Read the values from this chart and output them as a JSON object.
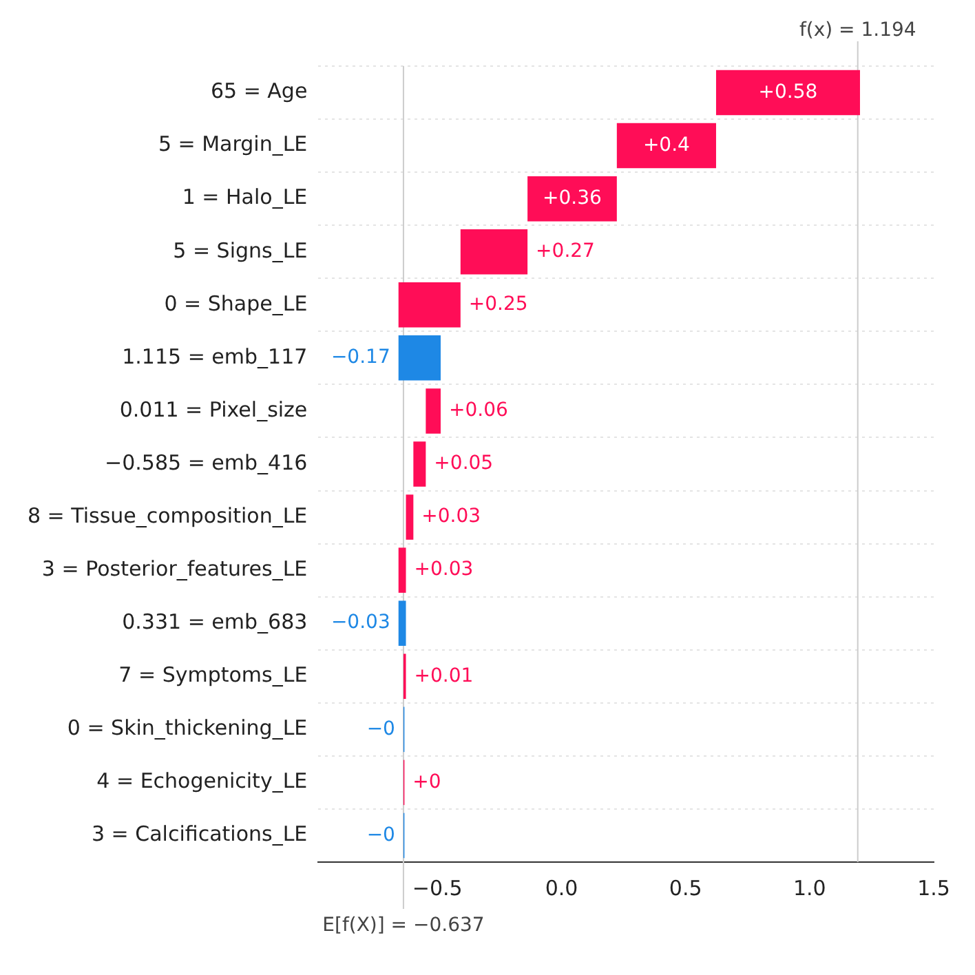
{
  "chart_data": {
    "type": "bar",
    "orientation": "horizontal",
    "categories": [
      "65 = Age",
      "5 = Margin_LE",
      "1 = Halo_LE",
      "5 = Signs_LE",
      "0 = Shape_LE",
      "1.115 = emb_117",
      "0.011 = Pixel_size",
      "−0.585 = emb_416",
      "8 = Tissue_composition_LE",
      "3 = Posterior_features_LE",
      "0.331 = emb_683",
      "7 = Symptoms_LE",
      "0 = Skin_thickening_LE",
      "4 = Echogenicity_LE",
      "3 = Calcifications_LE"
    ],
    "values": [
      0.58,
      0.4,
      0.36,
      0.27,
      0.25,
      -0.17,
      0.06,
      0.05,
      0.03,
      0.03,
      -0.03,
      0.01,
      -0.004,
      0.004,
      -0.004
    ],
    "base": [
      0.623,
      0.223,
      -0.137,
      -0.407,
      -0.657,
      -0.487,
      -0.547,
      -0.597,
      -0.627,
      -0.657,
      -0.627,
      -0.637,
      -0.633,
      -0.637,
      -0.633
    ],
    "colors": [
      "#ff0d57",
      "#ff0d57",
      "#ff0d57",
      "#ff0d57",
      "#ff0d57",
      "#1e88e5",
      "#ff0d57",
      "#ff0d57",
      "#ff0d57",
      "#ff0d57",
      "#1e88e5",
      "#ff0d57",
      "#1e88e5",
      "#ff0d57",
      "#1e88e5"
    ],
    "value_labels": [
      "+0.58",
      "+0.4",
      "+0.36",
      "+0.27",
      "+0.25",
      "−0.17",
      "+0.06",
      "+0.05",
      "+0.03",
      "+0.03",
      "−0.03",
      "+0.01",
      "−0",
      "+0",
      "−0"
    ],
    "xlim": [
      -0.98,
      1.5
    ],
    "xticks": [
      {
        "value": -0.5,
        "label": "−0.5"
      },
      {
        "value": 0,
        "label": "0.0"
      },
      0.5,
      {
        "value": 1,
        "label": "1.0"
      },
      1.5
    ],
    "grid": "y",
    "legend": false,
    "ref_lines": [
      {
        "axis": "x",
        "value": 1.194,
        "label": "f(x) = 1.194",
        "color": "#cccccc",
        "line_style": "solid"
      },
      {
        "axis": "x",
        "value": -0.637,
        "label": "E[f(X)] = −0.637",
        "color": "#cccccc",
        "line_style": "solid"
      }
    ]
  }
}
